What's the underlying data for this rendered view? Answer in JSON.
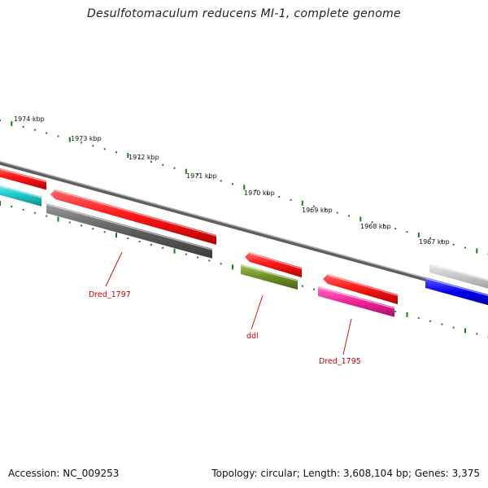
{
  "title": "Desulfotomaculum reducens MI-1, complete genome",
  "footer": {
    "accession": "Accession: NC_009253",
    "topology": "Topology: circular; Length: 3,608,104 bp; Genes: 3,375"
  },
  "scale_ticks": [
    "1974 kbp",
    "1973 kbp",
    "1972 kbp",
    "1971 kbp",
    "1970 kbp",
    "1969 kbp",
    "1968 kbp",
    "1967 kbp"
  ],
  "gene_labels": [
    "Dred_1797",
    "ddl",
    "Dred_1795"
  ],
  "colors": {
    "backbone": "#8a8a8a",
    "tick_green": "#1f7a1f",
    "forward_red": "#ee1111",
    "cyan": "#22cccc",
    "gray_gene": "#666666",
    "olive": "#6b8e23",
    "magenta": "#ee2299",
    "light_gray": "#c0c0c0",
    "blue": "#0000ee",
    "label_red": "#cc0000"
  }
}
